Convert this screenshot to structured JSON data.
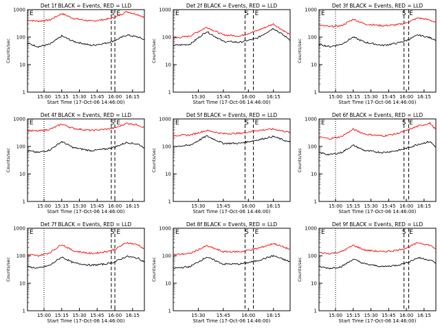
{
  "page": {
    "x_axis_title": "Start Time (17-Oct-06 14:46:00)",
    "y_axis_title": "Counts/sec",
    "y_ticks": [
      "1",
      "10",
      "100",
      "1000"
    ],
    "marker_letters": {
      "S": "S",
      "E": "E"
    }
  },
  "chart_data": [
    {
      "type": "line",
      "title": "Det 1f BLACK = Events, RED = LLD",
      "ylim": [
        1,
        1000
      ],
      "yscale": "log",
      "xlim": [
        "14:46",
        "16:25"
      ],
      "x_ticks": [
        "15:00",
        "15:15",
        "15:30",
        "15:45",
        "16:00",
        "16:15"
      ],
      "dotted_line_x": "15:00",
      "dashed_lines_x": [
        "15:57",
        "16:00"
      ],
      "marker_S_x": "15:58",
      "marker_E_x": "16:03",
      "series": [
        {
          "name": "LLD",
          "color": "#ff0000",
          "x": [
            "14:46",
            "14:55",
            "15:05",
            "15:15",
            "15:25",
            "15:40",
            "15:52",
            "16:00",
            "16:10",
            "16:20",
            "16:25"
          ],
          "values": [
            420,
            380,
            420,
            720,
            480,
            380,
            440,
            520,
            850,
            650,
            520
          ]
        },
        {
          "name": "Events",
          "color": "#000000",
          "x": [
            "14:46",
            "14:55",
            "15:05",
            "15:15",
            "15:25",
            "15:40",
            "15:52",
            "16:00",
            "16:10",
            "16:20",
            "16:25"
          ],
          "values": [
            60,
            45,
            55,
            110,
            70,
            50,
            60,
            75,
            120,
            100,
            80
          ]
        }
      ]
    },
    {
      "type": "line",
      "title": "Det 2f BLACK = Events, RED = LLD",
      "ylim": [
        1,
        1000
      ],
      "yscale": "log",
      "xlim": [
        "15:15",
        "16:25"
      ],
      "x_ticks": [
        "15:30",
        "15:45",
        "16:00",
        "16:15"
      ],
      "dotted_line_x": "15:15",
      "dashed_lines_x": [
        "15:58",
        "16:03"
      ],
      "marker_S_x": "15:59",
      "marker_E_x": "16:05",
      "series": [
        {
          "name": "LLD",
          "color": "#ff0000",
          "x": [
            "15:15",
            "15:25",
            "15:35",
            "15:45",
            "15:55",
            "16:05",
            "16:15",
            "16:25"
          ],
          "values": [
            90,
            110,
            230,
            120,
            110,
            170,
            300,
            120
          ]
        },
        {
          "name": "Events",
          "color": "#000000",
          "x": [
            "15:15",
            "15:25",
            "15:35",
            "15:45",
            "15:55",
            "16:05",
            "16:15",
            "16:25"
          ],
          "values": [
            50,
            55,
            160,
            70,
            65,
            90,
            210,
            80
          ]
        }
      ]
    },
    {
      "type": "line",
      "title": "Det 3f BLACK = Events, RED = LLD",
      "ylim": [
        1,
        1000
      ],
      "yscale": "log",
      "xlim": [
        "14:46",
        "16:25"
      ],
      "x_ticks": [
        "15:00",
        "15:15",
        "15:30",
        "15:45",
        "16:00",
        "16:15"
      ],
      "dotted_line_x": "15:00",
      "dashed_lines_x": [
        "15:58",
        "16:02"
      ],
      "marker_S_x": "15:58",
      "marker_E_x": "16:04",
      "series": [
        {
          "name": "LLD",
          "color": "#ff0000",
          "x": [
            "14:46",
            "14:55",
            "15:05",
            "15:15",
            "15:25",
            "15:40",
            "15:52",
            "16:00",
            "16:10",
            "16:20",
            "16:25"
          ],
          "values": [
            270,
            240,
            260,
            450,
            300,
            260,
            280,
            330,
            500,
            420,
            330
          ]
        },
        {
          "name": "Events",
          "color": "#000000",
          "x": [
            "14:46",
            "14:55",
            "15:05",
            "15:15",
            "15:25",
            "15:40",
            "15:52",
            "16:00",
            "16:10",
            "16:20",
            "16:25"
          ],
          "values": [
            55,
            45,
            55,
            100,
            65,
            50,
            60,
            75,
            120,
            95,
            80
          ]
        }
      ]
    },
    {
      "type": "line",
      "title": "Det 4f BLACK = Events, RED = LLD",
      "ylim": [
        1,
        1000
      ],
      "yscale": "log",
      "xlim": [
        "14:46",
        "16:25"
      ],
      "x_ticks": [
        "15:00",
        "15:15",
        "15:30",
        "15:45",
        "16:00",
        "16:15"
      ],
      "dotted_line_x": "15:00",
      "dashed_lines_x": [
        "15:57",
        "16:00"
      ],
      "marker_S_x": "15:58",
      "marker_E_x": "16:03",
      "series": [
        {
          "name": "LLD",
          "color": "#ff0000",
          "x": [
            "14:46",
            "14:55",
            "15:05",
            "15:15",
            "15:25",
            "15:40",
            "15:52",
            "16:00",
            "16:10",
            "16:20",
            "16:25"
          ],
          "values": [
            380,
            360,
            420,
            650,
            450,
            380,
            420,
            470,
            700,
            600,
            480
          ]
        },
        {
          "name": "Events",
          "color": "#000000",
          "x": [
            "14:46",
            "14:55",
            "15:05",
            "15:15",
            "15:25",
            "15:40",
            "15:52",
            "16:00",
            "16:10",
            "16:20",
            "16:25"
          ],
          "values": [
            70,
            60,
            75,
            150,
            90,
            70,
            80,
            95,
            140,
            120,
            90
          ]
        }
      ]
    },
    {
      "type": "line",
      "title": "Det 5f BLACK = Events, RED = LLD",
      "ylim": [
        1,
        1000
      ],
      "yscale": "log",
      "xlim": [
        "15:15",
        "16:25"
      ],
      "x_ticks": [
        "15:30",
        "15:45",
        "16:00",
        "16:15"
      ],
      "dotted_line_x": "15:15",
      "dashed_lines_x": [
        "15:58",
        "16:03"
      ],
      "marker_S_x": "15:59",
      "marker_E_x": "16:05",
      "series": [
        {
          "name": "LLD",
          "color": "#ff0000",
          "x": [
            "15:15",
            "15:25",
            "15:35",
            "15:45",
            "15:55",
            "16:05",
            "16:15",
            "16:25"
          ],
          "values": [
            250,
            260,
            380,
            290,
            300,
            380,
            430,
            320
          ]
        },
        {
          "name": "Events",
          "color": "#000000",
          "x": [
            "15:15",
            "15:25",
            "15:35",
            "15:45",
            "15:55",
            "16:05",
            "16:15",
            "16:25"
          ],
          "values": [
            100,
            110,
            240,
            130,
            130,
            170,
            230,
            140
          ]
        }
      ]
    },
    {
      "type": "line",
      "title": "Det 6f BLACK = Events, RED = LLD",
      "ylim": [
        1,
        1000
      ],
      "yscale": "log",
      "xlim": [
        "14:46",
        "16:25"
      ],
      "x_ticks": [
        "15:00",
        "15:15",
        "15:30",
        "15:45",
        "16:00",
        "16:15"
      ],
      "dotted_line_x": "15:00",
      "dashed_lines_x": [
        "15:58",
        "16:02"
      ],
      "marker_S_x": "15:58",
      "marker_E_x": "16:04",
      "series": [
        {
          "name": "LLD",
          "color": "#ff0000",
          "x": [
            "14:46",
            "14:55",
            "15:05",
            "15:15",
            "15:25",
            "15:40",
            "15:52",
            "16:00",
            "16:10",
            "16:20",
            "16:25"
          ],
          "values": [
            220,
            190,
            230,
            420,
            280,
            240,
            290,
            380,
            550,
            700,
            400
          ]
        },
        {
          "name": "Events",
          "color": "#000000",
          "x": [
            "14:46",
            "14:55",
            "15:05",
            "15:15",
            "15:25",
            "15:40",
            "15:52",
            "16:00",
            "16:10",
            "16:20",
            "16:25"
          ],
          "values": [
            60,
            50,
            60,
            110,
            70,
            60,
            70,
            85,
            120,
            150,
            95
          ]
        }
      ]
    },
    {
      "type": "line",
      "title": "Det 7f BLACK = Events, RED = LLD",
      "ylim": [
        1,
        1000
      ],
      "yscale": "log",
      "xlim": [
        "14:46",
        "16:25"
      ],
      "x_ticks": [
        "15:00",
        "15:15",
        "15:30",
        "15:45",
        "16:00",
        "16:15"
      ],
      "dotted_line_x": "15:00",
      "dashed_lines_x": [
        "15:57",
        "16:00"
      ],
      "marker_S_x": "15:58",
      "marker_E_x": "16:03",
      "series": [
        {
          "name": "LLD",
          "color": "#ff0000",
          "x": [
            "14:46",
            "14:55",
            "15:05",
            "15:15",
            "15:25",
            "15:40",
            "15:52",
            "16:00",
            "16:10",
            "16:20",
            "16:25"
          ],
          "values": [
            110,
            100,
            130,
            260,
            150,
            120,
            140,
            170,
            300,
            250,
            170
          ]
        },
        {
          "name": "Events",
          "color": "#000000",
          "x": [
            "14:46",
            "14:55",
            "15:05",
            "15:15",
            "15:25",
            "15:40",
            "15:52",
            "16:00",
            "16:10",
            "16:20",
            "16:25"
          ],
          "values": [
            40,
            35,
            45,
            90,
            55,
            45,
            50,
            60,
            95,
            80,
            60
          ]
        }
      ]
    },
    {
      "type": "line",
      "title": "Det 8f BLACK = Events, RED = LLD",
      "ylim": [
        1,
        1000
      ],
      "yscale": "log",
      "xlim": [
        "15:15",
        "16:25"
      ],
      "x_ticks": [
        "15:30",
        "15:45",
        "16:00",
        "16:15"
      ],
      "dotted_line_x": "15:15",
      "dashed_lines_x": [
        "15:58",
        "16:03"
      ],
      "marker_S_x": "15:59",
      "marker_E_x": "16:05",
      "series": [
        {
          "name": "LLD",
          "color": "#ff0000",
          "x": [
            "15:15",
            "15:25",
            "15:35",
            "15:45",
            "15:55",
            "16:05",
            "16:15",
            "16:25"
          ],
          "values": [
            110,
            120,
            230,
            140,
            140,
            180,
            280,
            170
          ]
        },
        {
          "name": "Events",
          "color": "#000000",
          "x": [
            "15:15",
            "15:25",
            "15:35",
            "15:45",
            "15:55",
            "16:05",
            "16:15",
            "16:25"
          ],
          "values": [
            35,
            40,
            90,
            50,
            50,
            65,
            100,
            60
          ]
        }
      ]
    },
    {
      "type": "line",
      "title": "Det 9f BLACK = Events, RED = LLD",
      "ylim": [
        1,
        1000
      ],
      "yscale": "log",
      "xlim": [
        "14:46",
        "16:25"
      ],
      "x_ticks": [
        "15:00",
        "15:15",
        "15:30",
        "15:45",
        "16:00",
        "16:15"
      ],
      "dotted_line_x": "15:00",
      "dashed_lines_x": [
        "15:58",
        "16:02"
      ],
      "marker_S_x": "15:58",
      "marker_E_x": "16:04",
      "series": [
        {
          "name": "LLD",
          "color": "#ff0000",
          "x": [
            "14:46",
            "14:55",
            "15:05",
            "15:15",
            "15:25",
            "15:40",
            "15:52",
            "16:00",
            "16:10",
            "16:20",
            "16:25"
          ],
          "values": [
            130,
            120,
            140,
            240,
            160,
            140,
            160,
            190,
            300,
            240,
            180
          ]
        },
        {
          "name": "Events",
          "color": "#000000",
          "x": [
            "14:46",
            "14:55",
            "15:05",
            "15:15",
            "15:25",
            "15:40",
            "15:52",
            "16:00",
            "16:10",
            "16:20",
            "16:25"
          ],
          "values": [
            40,
            35,
            40,
            75,
            50,
            40,
            45,
            55,
            85,
            70,
            55
          ]
        }
      ]
    }
  ]
}
